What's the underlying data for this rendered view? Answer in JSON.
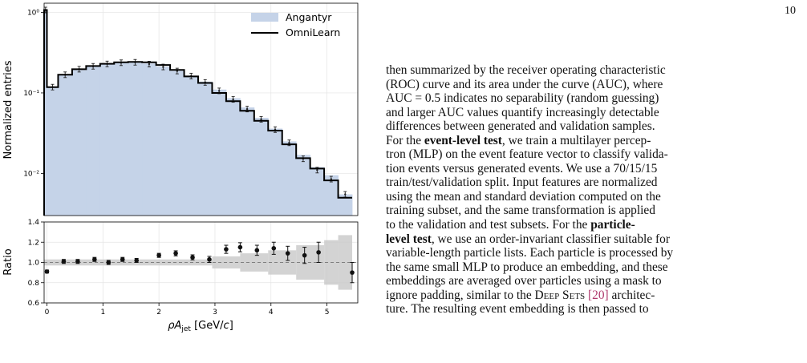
{
  "page_number": "10",
  "figure": {
    "legend": [
      "Angantyr",
      "OmniLearn"
    ],
    "top_ylabel": "Normalized entries",
    "bottom_ylabel": "Ratio",
    "colors": {
      "fill": "#c5d3e8",
      "line": "#000000",
      "band": "#c8c8c8"
    }
  },
  "chart_data": [
    {
      "type": "bar",
      "panel": "distribution",
      "series": [
        {
          "name": "Angantyr",
          "values": [
            1.05,
            0.117,
            0.165,
            0.192,
            0.214,
            0.228,
            0.235,
            0.238,
            0.232,
            0.212,
            0.188,
            0.164,
            0.138,
            0.11,
            0.086,
            0.066,
            0.049,
            0.036,
            0.025,
            0.017,
            0.012,
            0.0095,
            0.0055
          ]
        },
        {
          "name": "OmniLearn",
          "values": [
            1.07,
            0.118,
            0.168,
            0.197,
            0.216,
            0.23,
            0.24,
            0.243,
            0.24,
            0.222,
            0.193,
            0.16,
            0.133,
            0.1,
            0.079,
            0.06,
            0.045,
            0.034,
            0.023,
            0.0155,
            0.0115,
            0.0082,
            0.005
          ]
        }
      ],
      "x_edges": [
        -0.05,
        0.0,
        0.2,
        0.45,
        0.7,
        0.95,
        1.2,
        1.45,
        1.7,
        1.95,
        2.2,
        2.45,
        2.7,
        2.95,
        3.2,
        3.45,
        3.7,
        3.95,
        4.2,
        4.45,
        4.7,
        4.95,
        5.2,
        5.45
      ],
      "points": [
        1.07,
        0.118,
        0.168,
        0.197,
        0.214,
        0.229,
        0.237,
        0.24,
        0.228,
        0.21,
        0.187,
        0.162,
        0.135,
        0.106,
        0.083,
        0.063,
        0.047,
        0.035,
        0.024,
        0.0152,
        0.011,
        0.0085,
        0.0055
      ],
      "xlim": [
        -0.05,
        5.55
      ],
      "ylim": [
        0.003,
        1.3
      ],
      "log_y": true,
      "yticks": [
        0.01,
        0.1,
        1
      ],
      "ytick_labels": [
        "10⁻²",
        "10⁻¹",
        "10⁰"
      ],
      "xlabel": "",
      "ylabel": "Normalized entries",
      "legend_position": "top-right",
      "grid": true
    },
    {
      "type": "scatter",
      "panel": "ratio",
      "x": [
        0.0,
        0.3,
        0.55,
        0.85,
        1.1,
        1.35,
        1.6,
        2.0,
        2.3,
        2.6,
        2.9,
        3.2,
        3.45,
        3.75,
        4.05,
        4.3,
        4.6,
        4.85,
        5.45
      ],
      "y": [
        0.91,
        1.01,
        1.01,
        1.03,
        1.0,
        1.03,
        1.02,
        1.07,
        1.09,
        1.05,
        1.03,
        1.13,
        1.15,
        1.12,
        1.14,
        1.09,
        1.07,
        1.1,
        0.9
      ],
      "yerr": [
        0.015,
        0.02,
        0.02,
        0.02,
        0.02,
        0.02,
        0.02,
        0.02,
        0.025,
        0.025,
        0.03,
        0.04,
        0.045,
        0.05,
        0.06,
        0.07,
        0.08,
        0.1,
        0.1
      ],
      "band_x_edges": [
        2.95,
        3.45,
        3.95,
        4.45,
        4.95,
        5.2,
        5.45
      ],
      "band_halfwidth": [
        0.06,
        0.09,
        0.12,
        0.17,
        0.22,
        0.27
      ],
      "xlim": [
        -0.05,
        5.55
      ],
      "ylim": [
        0.6,
        1.4
      ],
      "yticks": [
        0.6,
        0.8,
        1.0,
        1.2,
        1.4
      ],
      "ytick_labels": [
        "0.6",
        "0.8",
        "1.0",
        "1.2",
        "1.4"
      ],
      "xticks": [
        0,
        1,
        2,
        3,
        4,
        5
      ],
      "xtick_labels": [
        "0",
        "1",
        "2",
        "3",
        "4",
        "5"
      ],
      "xlabel": "ρA_jet [GeV/c]",
      "ylabel": "Ratio",
      "reference_line": 1.0,
      "grid": true
    }
  ],
  "text": {
    "l1": "then summarized by the receiver operating characteristic",
    "l2": "(ROC) curve and its area under the curve (AUC), where",
    "l3": "AUC = 0.5 indicates no separability (random guessing)",
    "l4": "and larger AUC values quantify increasingly detectable",
    "l5": "differences between generated and validation samples.",
    "l6a": "For the ",
    "l6b": "event-level test",
    "l6c": ", we train a multilayer percep-",
    "l7": "tron (MLP) on the event feature vector to classify valida-",
    "l8": "tion events versus generated events. We use a 70/15/15",
    "l9": "train/test/validation split. Input features are normalized",
    "l10": "using the mean and standard deviation computed on the",
    "l11": "training subset, and the same transformation is applied",
    "l12a": "to the validation and test subsets.  For the ",
    "l12b": "particle-",
    "l13a": "level test",
    "l13b": ", we use an order-invariant classifier suitable for",
    "l14": "variable-length particle lists. Each particle is processed by",
    "l15": "the same small MLP to produce an embedding, and these",
    "l16": "embeddings are averaged over particles using a mask to",
    "l17a": "ignore padding, similar to the ",
    "l17b": "Deep Sets",
    "l17c": "[20]",
    "l17d": " architec-",
    "l18": "ture.  The resulting event embedding is then passed to"
  }
}
